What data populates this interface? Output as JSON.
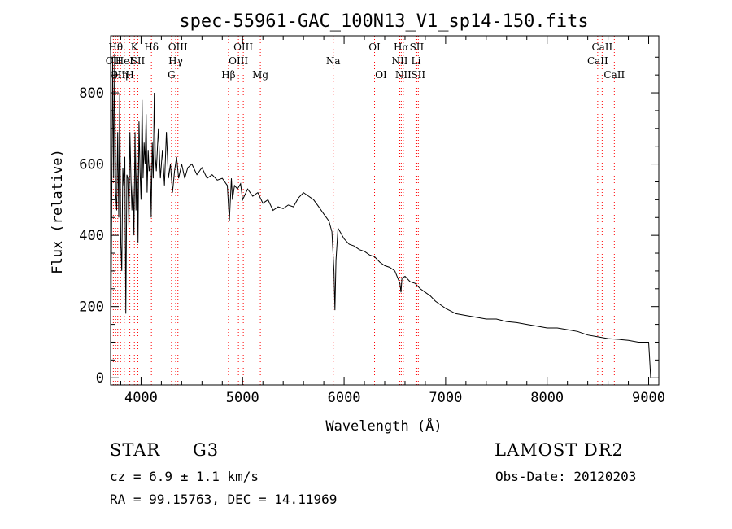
{
  "chart_data": {
    "type": "line",
    "title": "spec-55961-GAC_100N13_V1_sp14-150.fits",
    "xlabel": "Wavelength (Å)",
    "ylabel": "Flux (relative)",
    "xlim": [
      3700,
      9100
    ],
    "ylim": [
      -20,
      960
    ],
    "xticks": [
      4000,
      5000,
      6000,
      7000,
      8000,
      9000
    ],
    "yticks": [
      0,
      200,
      400,
      600,
      800
    ],
    "grid": false,
    "series": [
      {
        "values": [
          [
            3700,
            20
          ],
          [
            3710,
            420
          ],
          [
            3720,
            900
          ],
          [
            3730,
            560
          ],
          [
            3740,
            910
          ],
          [
            3750,
            520
          ],
          [
            3760,
            470
          ],
          [
            3770,
            690
          ],
          [
            3780,
            450
          ],
          [
            3790,
            800
          ],
          [
            3800,
            380
          ],
          [
            3810,
            300
          ],
          [
            3820,
            590
          ],
          [
            3830,
            540
          ],
          [
            3840,
            620
          ],
          [
            3850,
            180
          ],
          [
            3860,
            570
          ],
          [
            3870,
            560
          ],
          [
            3880,
            420
          ],
          [
            3890,
            690
          ],
          [
            3900,
            560
          ],
          [
            3910,
            470
          ],
          [
            3920,
            550
          ],
          [
            3930,
            400
          ],
          [
            3940,
            690
          ],
          [
            3950,
            470
          ],
          [
            3960,
            650
          ],
          [
            3970,
            380
          ],
          [
            3980,
            720
          ],
          [
            3990,
            580
          ],
          [
            4000,
            500
          ],
          [
            4010,
            780
          ],
          [
            4020,
            560
          ],
          [
            4030,
            660
          ],
          [
            4040,
            600
          ],
          [
            4050,
            740
          ],
          [
            4060,
            520
          ],
          [
            4070,
            640
          ],
          [
            4080,
            580
          ],
          [
            4090,
            600
          ],
          [
            4100,
            450
          ],
          [
            4110,
            660
          ],
          [
            4120,
            560
          ],
          [
            4130,
            800
          ],
          [
            4140,
            620
          ],
          [
            4150,
            580
          ],
          [
            4170,
            700
          ],
          [
            4190,
            560
          ],
          [
            4210,
            640
          ],
          [
            4230,
            540
          ],
          [
            4250,
            690
          ],
          [
            4270,
            560
          ],
          [
            4290,
            600
          ],
          [
            4310,
            520
          ],
          [
            4330,
            580
          ],
          [
            4350,
            620
          ],
          [
            4370,
            560
          ],
          [
            4400,
            600
          ],
          [
            4430,
            560
          ],
          [
            4460,
            590
          ],
          [
            4500,
            600
          ],
          [
            4550,
            570
          ],
          [
            4600,
            590
          ],
          [
            4650,
            560
          ],
          [
            4700,
            570
          ],
          [
            4750,
            555
          ],
          [
            4800,
            560
          ],
          [
            4850,
            540
          ],
          [
            4870,
            440
          ],
          [
            4890,
            560
          ],
          [
            4900,
            500
          ],
          [
            4920,
            540
          ],
          [
            4950,
            530
          ],
          [
            4980,
            545
          ],
          [
            5000,
            500
          ],
          [
            5050,
            530
          ],
          [
            5100,
            510
          ],
          [
            5150,
            520
          ],
          [
            5200,
            490
          ],
          [
            5250,
            500
          ],
          [
            5300,
            470
          ],
          [
            5350,
            480
          ],
          [
            5400,
            475
          ],
          [
            5450,
            485
          ],
          [
            5500,
            480
          ],
          [
            5550,
            505
          ],
          [
            5600,
            520
          ],
          [
            5650,
            510
          ],
          [
            5700,
            500
          ],
          [
            5750,
            480
          ],
          [
            5800,
            460
          ],
          [
            5850,
            440
          ],
          [
            5880,
            410
          ],
          [
            5900,
            300
          ],
          [
            5910,
            190
          ],
          [
            5920,
            330
          ],
          [
            5940,
            420
          ],
          [
            5980,
            400
          ],
          [
            6000,
            390
          ],
          [
            6050,
            375
          ],
          [
            6100,
            370
          ],
          [
            6150,
            360
          ],
          [
            6200,
            355
          ],
          [
            6250,
            345
          ],
          [
            6300,
            340
          ],
          [
            6350,
            325
          ],
          [
            6400,
            315
          ],
          [
            6450,
            310
          ],
          [
            6500,
            300
          ],
          [
            6550,
            265
          ],
          [
            6560,
            240
          ],
          [
            6570,
            280
          ],
          [
            6600,
            285
          ],
          [
            6650,
            270
          ],
          [
            6700,
            265
          ],
          [
            6750,
            250
          ],
          [
            6800,
            240
          ],
          [
            6850,
            230
          ],
          [
            6900,
            215
          ],
          [
            6950,
            205
          ],
          [
            7000,
            195
          ],
          [
            7100,
            180
          ],
          [
            7200,
            175
          ],
          [
            7300,
            170
          ],
          [
            7400,
            165
          ],
          [
            7500,
            165
          ],
          [
            7600,
            158
          ],
          [
            7700,
            155
          ],
          [
            7800,
            150
          ],
          [
            7900,
            145
          ],
          [
            8000,
            140
          ],
          [
            8100,
            140
          ],
          [
            8200,
            135
          ],
          [
            8300,
            130
          ],
          [
            8400,
            120
          ],
          [
            8500,
            115
          ],
          [
            8600,
            110
          ],
          [
            8700,
            108
          ],
          [
            8800,
            105
          ],
          [
            8900,
            100
          ],
          [
            9000,
            100
          ],
          [
            9010,
            50
          ],
          [
            9020,
            0
          ]
        ]
      }
    ],
    "line_color": "#000000",
    "marker_color": "#ff0000",
    "line_markers": [
      {
        "wl": 3727,
        "label": "OII",
        "row": 1
      },
      {
        "wl": 3750,
        "label": "Hθ",
        "row": 0
      },
      {
        "wl": 3770,
        "label": "OII",
        "row": 2
      },
      {
        "wl": 3798,
        "label": "Hη",
        "row": 2
      },
      {
        "wl": 3835,
        "label": "HeI",
        "row": 1
      },
      {
        "wl": 3889,
        "label": "H",
        "row": 2
      },
      {
        "wl": 3934,
        "label": "K",
        "row": 0
      },
      {
        "wl": 3968,
        "label": "SII",
        "row": 1
      },
      {
        "wl": 4102,
        "label": "Hδ",
        "row": 0
      },
      {
        "wl": 4300,
        "label": "G",
        "row": 2
      },
      {
        "wl": 4341,
        "label": "Hγ",
        "row": 1
      },
      {
        "wl": 4363,
        "label": "OIII",
        "row": 0
      },
      {
        "wl": 4861,
        "label": "Hβ",
        "row": 2
      },
      {
        "wl": 4959,
        "label": "OIII",
        "row": 1
      },
      {
        "wl": 5007,
        "label": "OIII",
        "row": 0
      },
      {
        "wl": 5175,
        "label": "Mg",
        "row": 2
      },
      {
        "wl": 5893,
        "label": "Na",
        "row": 1
      },
      {
        "wl": 6300,
        "label": "OI",
        "row": 0
      },
      {
        "wl": 6364,
        "label": "OI",
        "row": 2
      },
      {
        "wl": 6548,
        "label": "NII",
        "row": 1
      },
      {
        "wl": 6563,
        "label": "Hα",
        "row": 0
      },
      {
        "wl": 6583,
        "label": "NII",
        "row": 2
      },
      {
        "wl": 6708,
        "label": "Li",
        "row": 1
      },
      {
        "wl": 6716,
        "label": "SII",
        "row": 0
      },
      {
        "wl": 6731,
        "label": "SII",
        "row": 2
      },
      {
        "wl": 8498,
        "label": "CaII",
        "row": 1
      },
      {
        "wl": 8542,
        "label": "CaII",
        "row": 0
      },
      {
        "wl": 8662,
        "label": "CaII",
        "row": 2
      }
    ]
  },
  "info": {
    "object_class": "STAR",
    "subclass": "G3",
    "survey": "LAMOST DR2",
    "redshift": "cz = 6.9 ± 1.1 km/s",
    "obs_date": "Obs-Date: 20120203",
    "coords": "RA =  99.15763, DEC =  14.11969"
  }
}
